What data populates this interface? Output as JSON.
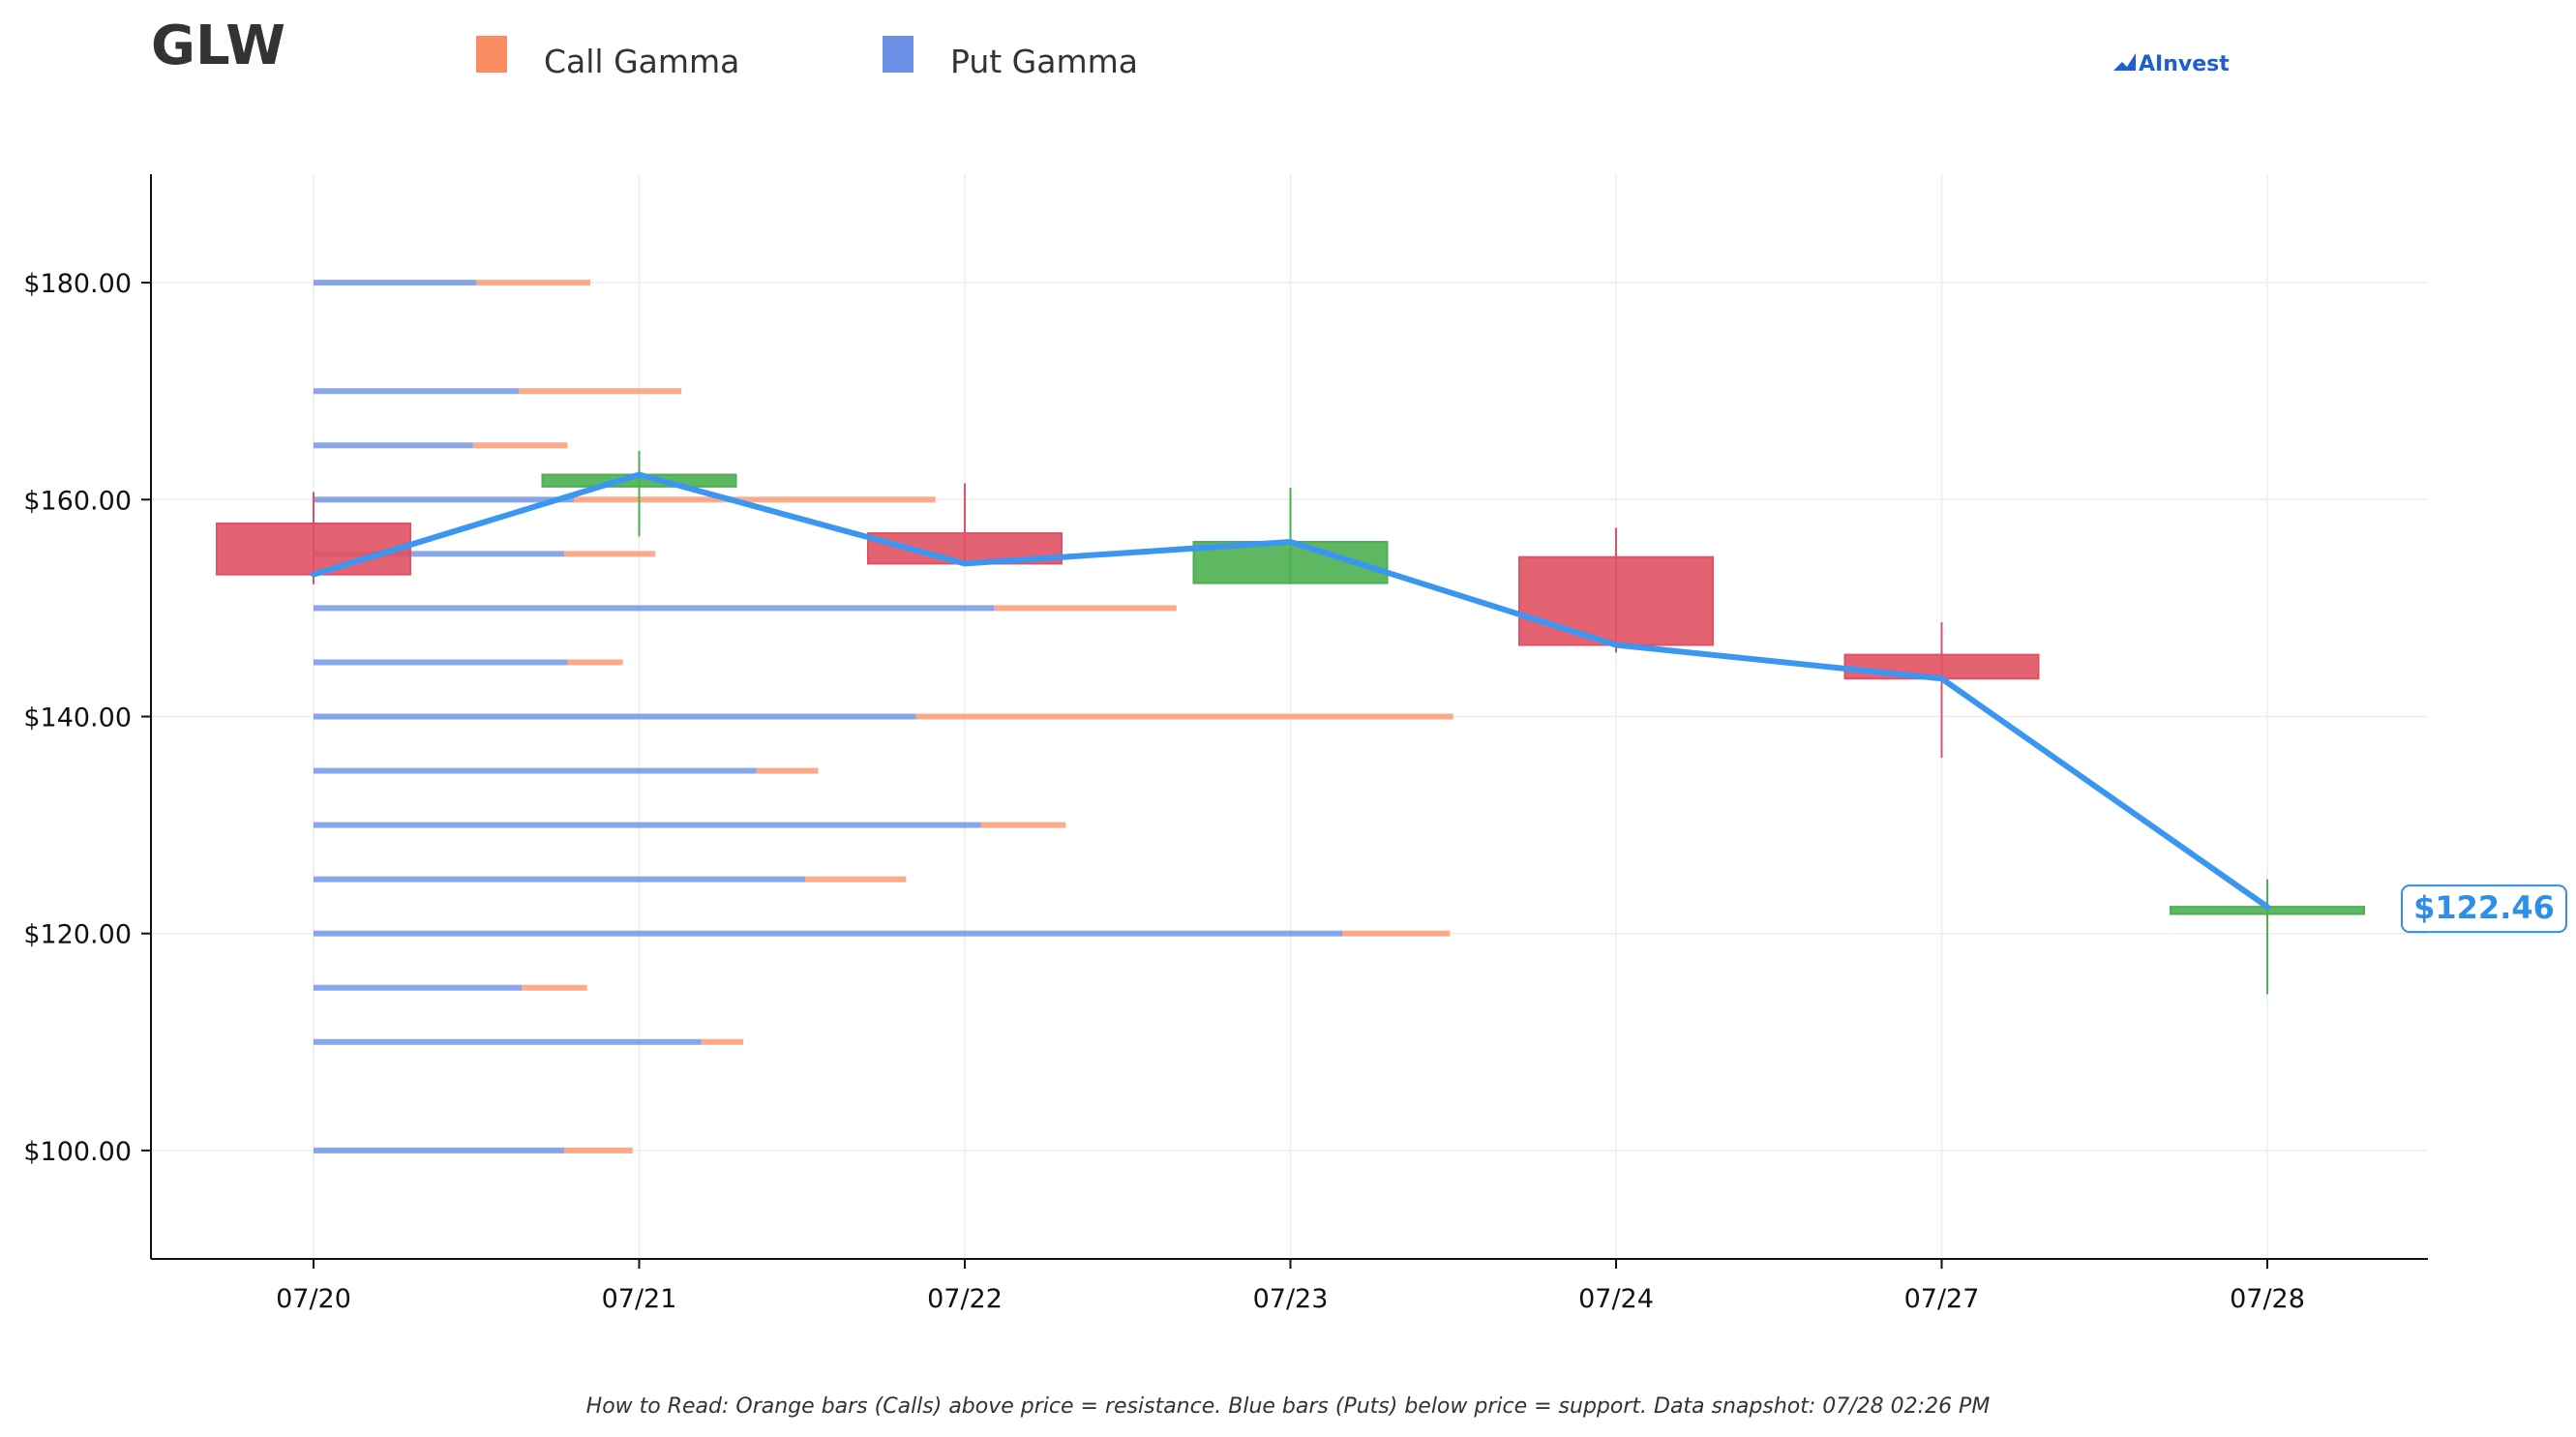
{
  "header": {
    "ticker": "GLW",
    "brand": "AInvest",
    "brand_color": "#1b5fd1"
  },
  "legend": {
    "items": [
      {
        "label": "Call Gamma",
        "color": "#fc8d62"
      },
      {
        "label": "Put Gamma",
        "color": "#6b8ee6"
      }
    ]
  },
  "footnote": "How to Read: Orange bars (Calls) above price = resistance. Blue bars (Puts) below price = support. Data snapshot: 07/28 02:26 PM",
  "chart_data": {
    "type": "candlestick",
    "ylim": [
      90,
      190
    ],
    "y_ticks": [
      100,
      120,
      140,
      160,
      180
    ],
    "y_tick_labels": [
      "$100.00",
      "$120.00",
      "$140.00",
      "$160.00",
      "$180.00"
    ],
    "grid": true,
    "legend_placement": "top-left",
    "categories": [
      "07/20",
      "07/21",
      "07/22",
      "07/23",
      "07/24",
      "07/27",
      "07/28"
    ],
    "candles": [
      {
        "date": "07/20",
        "open": 157.8,
        "high": 160.7,
        "low": 152.2,
        "close": 153.1
      },
      {
        "date": "07/21",
        "open": 161.2,
        "high": 164.5,
        "low": 156.6,
        "close": 162.3
      },
      {
        "date": "07/22",
        "open": 156.9,
        "high": 161.5,
        "low": 153.9,
        "close": 154.1
      },
      {
        "date": "07/23",
        "open": 152.3,
        "high": 161.1,
        "low": 152.2,
        "close": 156.1
      },
      {
        "date": "07/24",
        "open": 154.7,
        "high": 157.4,
        "low": 145.9,
        "close": 146.6
      },
      {
        "date": "07/27",
        "open": 145.7,
        "high": 148.7,
        "low": 136.2,
        "close": 143.5
      },
      {
        "date": "07/28",
        "open": 121.8,
        "high": 125.0,
        "low": 114.4,
        "close": 122.46
      }
    ],
    "close_line": {
      "color": "#3a96f0",
      "values": [
        153.1,
        162.3,
        154.1,
        156.1,
        146.6,
        143.5,
        122.46
      ]
    },
    "up_color": "#4caf50",
    "down_color": "#e05263",
    "last_price_label": "$122.46",
    "last_price_color": "#2e8fe9",
    "gamma_profile": {
      "baseline_date": "07/20",
      "unit": "trading days",
      "strikes": [
        {
          "strike": 180,
          "put": 0.5,
          "call": 0.35
        },
        {
          "strike": 170,
          "put": 0.63,
          "call": 0.5
        },
        {
          "strike": 165,
          "put": 0.49,
          "call": 0.29
        },
        {
          "strike": 160,
          "put": 0.8,
          "call": 1.11
        },
        {
          "strike": 155,
          "put": 0.77,
          "call": 0.28
        },
        {
          "strike": 150,
          "put": 2.09,
          "call": 0.56
        },
        {
          "strike": 145,
          "put": 0.78,
          "call": 0.17
        },
        {
          "strike": 140,
          "put": 1.85,
          "call": 1.65
        },
        {
          "strike": 135,
          "put": 1.36,
          "call": 0.19
        },
        {
          "strike": 130,
          "put": 2.05,
          "call": 0.26
        },
        {
          "strike": 125,
          "put": 1.51,
          "call": 0.31
        },
        {
          "strike": 120,
          "put": 3.16,
          "call": 0.33
        },
        {
          "strike": 115,
          "put": 0.64,
          "call": 0.2
        },
        {
          "strike": 110,
          "put": 1.19,
          "call": 0.13
        },
        {
          "strike": 100,
          "put": 0.77,
          "call": 0.21
        }
      ]
    }
  }
}
